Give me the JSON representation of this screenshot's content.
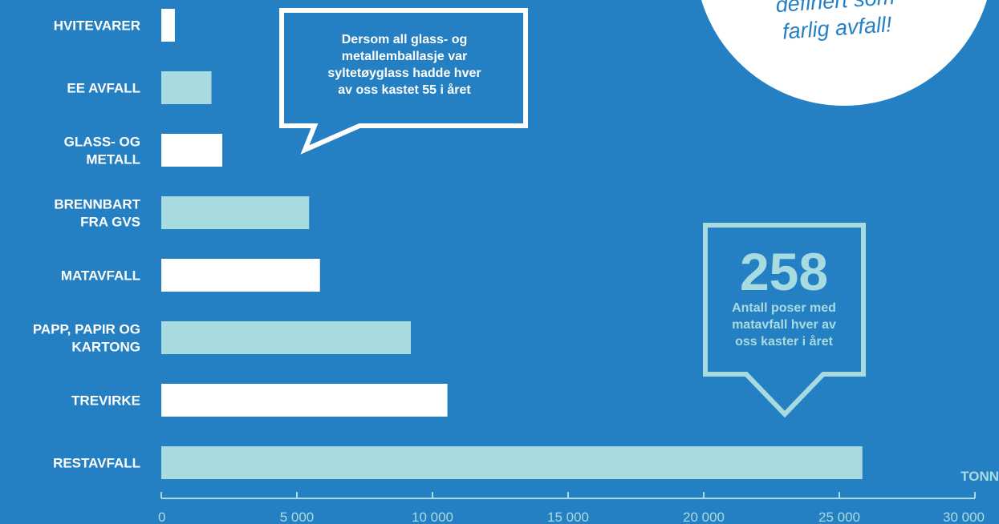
{
  "chart_data": {
    "type": "bar",
    "orientation": "horizontal",
    "categories": [
      "HVITEVARER",
      "EE AVFALL",
      "GLASS- OG\nMETALL",
      "BRENNBART\nFRA GVS",
      "MATAVFALL",
      "PAPP, PAPIR OG\nKARTONG",
      "TREVIRKE",
      "RESTAVFALL"
    ],
    "values": [
      500,
      1850,
      2250,
      5450,
      5850,
      9200,
      10550,
      25850
    ],
    "xlim": [
      0,
      30000
    ],
    "xticks": [
      0,
      5000,
      10000,
      15000,
      20000,
      25000,
      30000
    ],
    "xtick_labels": [
      "0",
      "5 000",
      "10 000",
      "15 000",
      "20 000",
      "25 000",
      "30 000"
    ],
    "xlabel": "TONN",
    "grid": false,
    "colors": {
      "background": "#2580c3",
      "bar_primary": "#ffffff",
      "bar_secondary": "#a8dbe0",
      "axis": "#a8dbe0"
    }
  },
  "callouts": {
    "glass": {
      "text": "Dersom all glass- og\nmetallemballasje var\nsyltetøyglass hadde hver\nav oss kastet 55 i året"
    },
    "food_bags": {
      "number": "258",
      "text": "Antall poser med\nmatavfall hver av\noss kaster i året"
    },
    "hazard": {
      "text": "definert som\nfarlig avfall!"
    }
  }
}
